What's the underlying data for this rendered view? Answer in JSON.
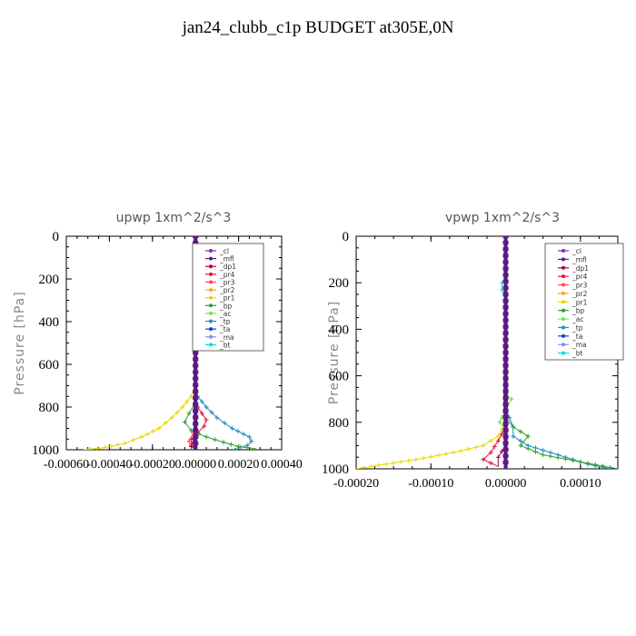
{
  "title": "jan24_clubb_c1p  BUDGET at305E,0N",
  "colors": {
    "cl": "#7b2fbf",
    "mfl": "#5a1a80",
    "dp1": "#b0004a",
    "pr4": "#e0143c",
    "pr3": "#ff4a4a",
    "pr2": "#ffa030",
    "pr1": "#e8d800",
    "bp": "#2ca02c",
    "ac": "#66ee44",
    "tp": "#1f8fc4",
    "ta": "#1040d0",
    "ma": "#8888ff",
    "bt": "#00dddd"
  },
  "chart_data": [
    {
      "type": "line",
      "title": "upwp   1xm^2/s^3",
      "ylabel": "Pressure [hPa]",
      "xlabel": "",
      "xlim": [
        -0.0006,
        0.0004
      ],
      "ylim": [
        1000,
        0
      ],
      "xticks": [
        "-0.00060",
        "-0.00040",
        "-0.00020",
        "0.00000",
        "0.00020",
        "0.00040"
      ],
      "yticks": [
        "0",
        "200",
        "400",
        "600",
        "800",
        "1000"
      ],
      "legend": [
        "_cl",
        "_mfl",
        "_dp1",
        "_pr4",
        "_pr3",
        "_pr2",
        "_pr1",
        "_bp",
        "_ac",
        "_tp",
        "_ta",
        "_ma",
        "_bt"
      ],
      "legend_position": "top-right",
      "series": [
        {
          "name": "_tp",
          "key": "tp",
          "points": [
            [
              0,
              0
            ],
            [
              0,
              700
            ],
            [
              1e-05,
              750
            ],
            [
              5e-05,
              800
            ],
            [
              0.0001,
              850
            ],
            [
              0.00017,
              900
            ],
            [
              0.00025,
              940
            ],
            [
              0.00026,
              960
            ],
            [
              0.00024,
              980
            ],
            [
              0.00018,
              995
            ]
          ]
        },
        {
          "name": "_pr1",
          "key": "pr1",
          "points": [
            [
              0,
              0
            ],
            [
              0,
              700
            ],
            [
              -2e-05,
              750
            ],
            [
              -6e-05,
              800
            ],
            [
              -0.00011,
              850
            ],
            [
              -0.00017,
              900
            ],
            [
              -0.00025,
              940
            ],
            [
              -0.00033,
              970
            ],
            [
              -0.00042,
              990
            ],
            [
              -0.00052,
              1000
            ]
          ]
        },
        {
          "name": "_bp",
          "key": "bp",
          "points": [
            [
              0,
              0
            ],
            [
              0,
              780
            ],
            [
              -3e-05,
              830
            ],
            [
              -5e-05,
              870
            ],
            [
              -2e-05,
              910
            ],
            [
              5e-05,
              940
            ],
            [
              0.00013,
              965
            ],
            [
              0.0002,
              985
            ],
            [
              0.00028,
              995
            ]
          ]
        },
        {
          "name": "_pr4",
          "key": "pr4",
          "points": [
            [
              0,
              0
            ],
            [
              0,
              780
            ],
            [
              1e-05,
              800
            ],
            [
              3e-05,
              830
            ],
            [
              5e-05,
              860
            ],
            [
              4e-05,
              890
            ],
            [
              1e-05,
              920
            ],
            [
              -2e-05,
              950
            ],
            [
              -2e-05,
              980
            ],
            [
              1e-05,
              1000
            ]
          ]
        },
        {
          "name": "_pr3",
          "key": "pr3",
          "points": [
            [
              0,
              0
            ],
            [
              0,
              880
            ],
            [
              -1e-05,
              920
            ],
            [
              -3e-05,
              960
            ],
            [
              -2e-05,
              990
            ]
          ]
        },
        {
          "name": "_dp1",
          "key": "dp1",
          "points": [
            [
              0,
              0
            ],
            [
              0,
              900
            ],
            [
              -1e-05,
              950
            ],
            [
              -2e-05,
              985
            ],
            [
              0,
              1000
            ]
          ]
        },
        {
          "name": "_cl",
          "key": "cl",
          "points": [
            [
              0,
              0
            ],
            [
              0,
              1000
            ]
          ]
        },
        {
          "name": "_mfl",
          "key": "mfl",
          "points": [
            [
              0,
              0
            ],
            [
              0,
              1000
            ]
          ]
        }
      ]
    },
    {
      "type": "line",
      "title": "vpwp   1xm^2/s^3",
      "ylabel": "Pressure [hPa]",
      "xlabel": "",
      "xlim": [
        -0.0002,
        0.00015
      ],
      "ylim": [
        1000,
        0
      ],
      "xticks": [
        "-0.00020",
        "-0.00010",
        "0.00000",
        "0.00010"
      ],
      "yticks": [
        "0",
        "200",
        "400",
        "600",
        "800",
        "1000"
      ],
      "legend": [
        "_cl",
        "_mfl",
        "_dp1",
        "_pr4",
        "_pr3",
        "_pr2",
        "_pr1",
        "_bp",
        "_ac",
        "_tp",
        "_ta",
        "_ma",
        "_bt"
      ],
      "legend_position": "top-right",
      "series": [
        {
          "name": "_bt",
          "key": "bt",
          "points": [
            [
              0,
              0
            ],
            [
              0,
              180
            ],
            [
              -5e-06,
              200
            ],
            [
              -5e-06,
              230
            ],
            [
              0,
              260
            ],
            [
              0,
              1000
            ]
          ]
        },
        {
          "name": "_ac",
          "key": "ac",
          "points": [
            [
              0,
              0
            ],
            [
              0,
              680
            ],
            [
              8e-06,
              700
            ],
            [
              2e-06,
              730
            ],
            [
              -5e-06,
              780
            ],
            [
              -8e-06,
              800
            ],
            [
              0,
              830
            ]
          ]
        },
        {
          "name": "_pr1",
          "key": "pr1",
          "points": [
            [
              0,
              0
            ],
            [
              0,
              800
            ],
            [
              -1e-05,
              860
            ],
            [
              -3e-05,
              900
            ],
            [
              -7e-05,
              930
            ],
            [
              -0.00012,
              960
            ],
            [
              -0.00017,
              985
            ],
            [
              -0.0002,
              1000
            ]
          ]
        },
        {
          "name": "_tp",
          "key": "tp",
          "points": [
            [
              0,
              0
            ],
            [
              0,
              740
            ],
            [
              5e-06,
              780
            ],
            [
              1e-05,
              820
            ],
            [
              1e-05,
              860
            ],
            [
              3e-05,
              900
            ],
            [
              7e-05,
              940
            ],
            [
              0.00011,
              980
            ],
            [
              0.00014,
              1000
            ]
          ]
        },
        {
          "name": "_bp",
          "key": "bp",
          "points": [
            [
              0,
              0
            ],
            [
              0,
              780
            ],
            [
              1e-05,
              820
            ],
            [
              3e-05,
              860
            ],
            [
              2e-05,
              900
            ],
            [
              5e-05,
              940
            ],
            [
              0.0001,
              970
            ],
            [
              0.00015,
              1000
            ]
          ]
        },
        {
          "name": "_pr4",
          "key": "pr4",
          "points": [
            [
              0,
              0
            ],
            [
              0,
              820
            ],
            [
              -1e-05,
              880
            ],
            [
              -2e-05,
              930
            ],
            [
              -3e-05,
              960
            ],
            [
              -1e-05,
              990
            ]
          ]
        },
        {
          "name": "_dp1",
          "key": "dp1",
          "points": [
            [
              0,
              0
            ],
            [
              0,
              900
            ],
            [
              -1e-05,
              950
            ],
            [
              -1e-05,
              990
            ]
          ]
        },
        {
          "name": "_cl",
          "key": "cl",
          "points": [
            [
              0,
              0
            ],
            [
              0,
              1000
            ]
          ]
        },
        {
          "name": "_mfl",
          "key": "mfl",
          "points": [
            [
              0,
              0
            ],
            [
              0,
              1000
            ]
          ]
        }
      ]
    }
  ]
}
